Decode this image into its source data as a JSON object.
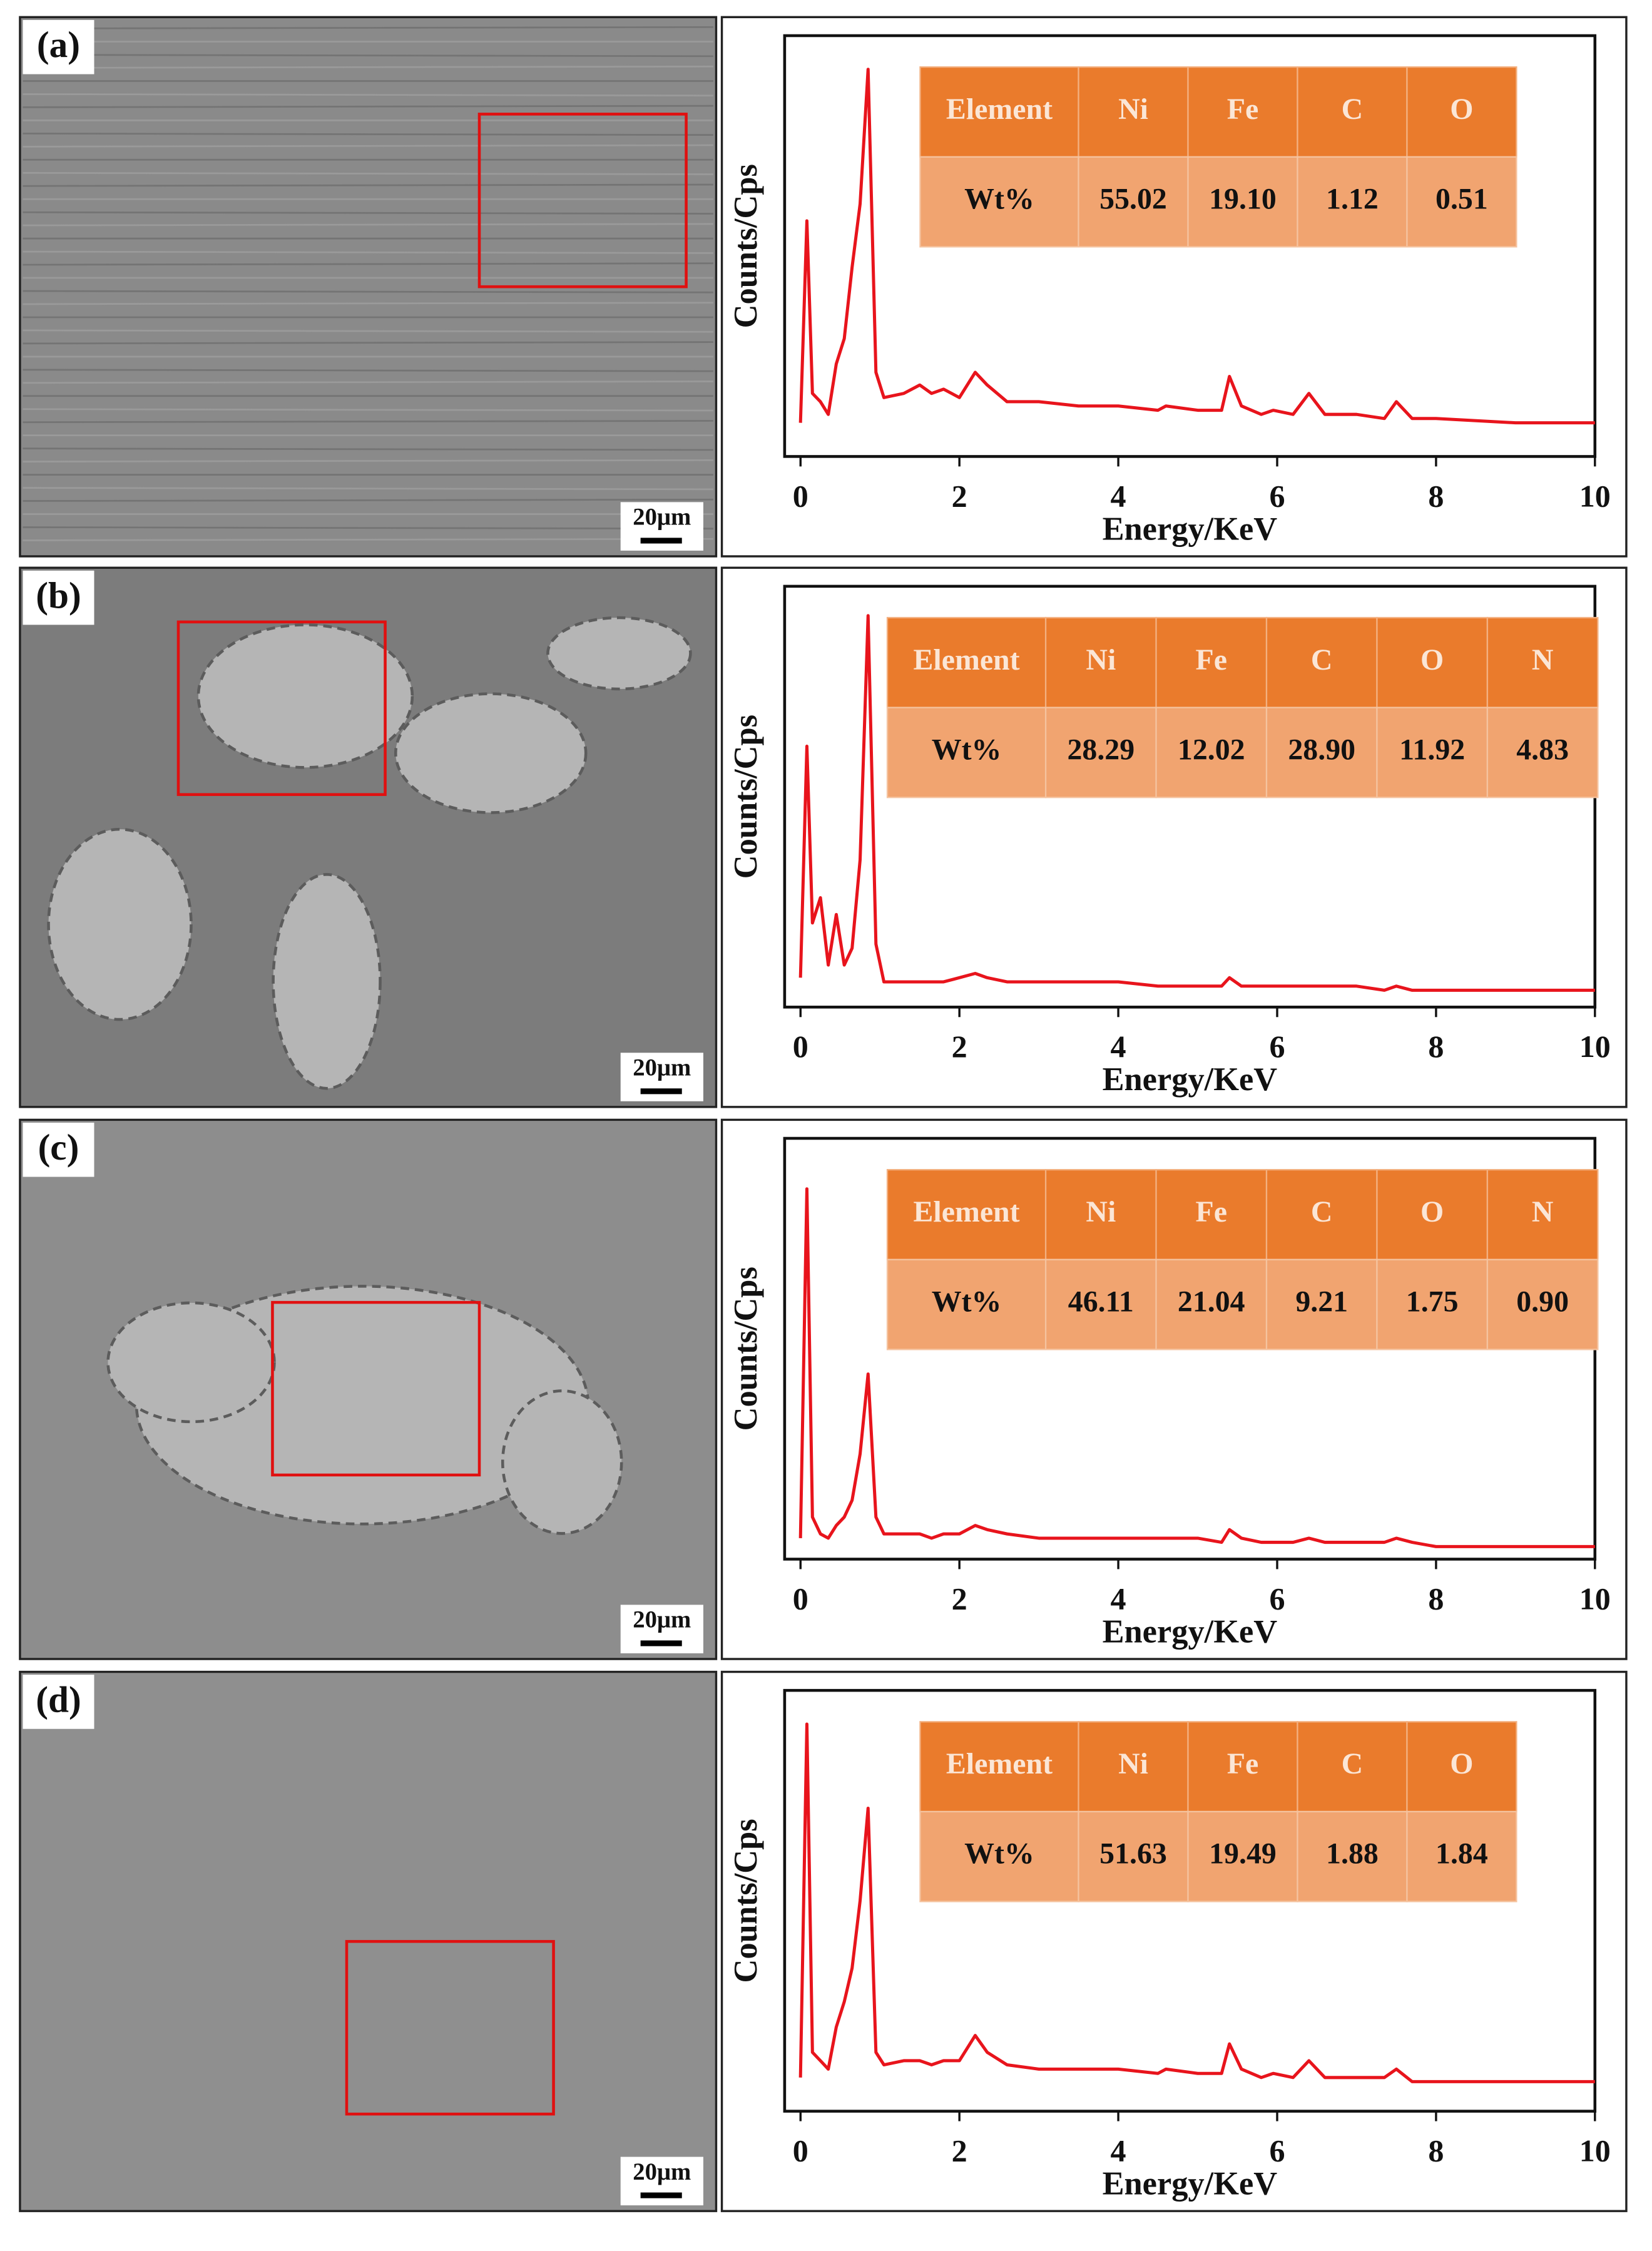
{
  "chart_data": [
    {
      "type": "line",
      "panel_label": "(a)",
      "scale_bar": "20μm",
      "xlabel": "Energy/KeV",
      "ylabel": "Counts/Cps",
      "xlim": [
        -0.2,
        10
      ],
      "xticks": [
        0,
        2,
        4,
        6,
        8,
        10
      ],
      "ylim": [
        0,
        100
      ],
      "x": [
        0,
        0.08,
        0.15,
        0.25,
        0.35,
        0.45,
        0.55,
        0.65,
        0.75,
        0.85,
        0.95,
        1.05,
        1.3,
        1.5,
        1.65,
        1.8,
        2.0,
        2.2,
        2.35,
        2.6,
        3,
        3.5,
        4,
        4.5,
        4.6,
        5,
        5.3,
        5.4,
        5.55,
        5.8,
        5.95,
        6.2,
        6.4,
        6.6,
        7,
        7.35,
        7.5,
        7.7,
        8,
        9,
        10
      ],
      "values": [
        8,
        56,
        15,
        13,
        10,
        22,
        28,
        45,
        60,
        92,
        20,
        14,
        15,
        17,
        15,
        16,
        14,
        20,
        17,
        13,
        13,
        12,
        12,
        11,
        12,
        11,
        11,
        19,
        12,
        10,
        11,
        10,
        15,
        10,
        10,
        9,
        13,
        9,
        9,
        8,
        8
      ],
      "color": "#e8141c",
      "table": {
        "header": [
          "Element",
          "Ni",
          "Fe",
          "C",
          "O"
        ],
        "rows": [
          [
            "Wt%",
            "55.02",
            "19.10",
            "1.12",
            "0.51"
          ]
        ]
      }
    },
    {
      "type": "line",
      "panel_label": "(b)",
      "scale_bar": "20μm",
      "xlabel": "Energy/KeV",
      "ylabel": "Counts/Cps",
      "xlim": [
        -0.2,
        10
      ],
      "xticks": [
        0,
        2,
        4,
        6,
        8,
        10
      ],
      "ylim": [
        0,
        100
      ],
      "x": [
        0,
        0.08,
        0.15,
        0.25,
        0.35,
        0.45,
        0.55,
        0.65,
        0.75,
        0.85,
        0.95,
        1.05,
        1.3,
        1.5,
        1.65,
        1.8,
        2.0,
        2.2,
        2.35,
        2.6,
        3,
        3.5,
        4,
        4.5,
        4.6,
        5,
        5.3,
        5.4,
        5.55,
        5.8,
        5.95,
        6.2,
        6.4,
        6.6,
        7,
        7.35,
        7.5,
        7.7,
        8,
        9,
        10
      ],
      "values": [
        7,
        62,
        20,
        26,
        10,
        22,
        10,
        14,
        35,
        93,
        15,
        6,
        6,
        6,
        6,
        6,
        7,
        8,
        7,
        6,
        6,
        6,
        6,
        5,
        5,
        5,
        5,
        7,
        5,
        5,
        5,
        5,
        5,
        5,
        5,
        4,
        5,
        4,
        4,
        4,
        4
      ],
      "color": "#e8141c",
      "table": {
        "header": [
          "Element",
          "Ni",
          "Fe",
          "C",
          "O",
          "N"
        ],
        "rows": [
          [
            "Wt%",
            "28.29",
            "12.02",
            "28.90",
            "11.92",
            "4.83"
          ]
        ]
      }
    },
    {
      "type": "line",
      "panel_label": "(c)",
      "scale_bar": "20μm",
      "xlabel": "Energy/KeV",
      "ylabel": "Counts/Cps",
      "xlim": [
        -0.2,
        10
      ],
      "xticks": [
        0,
        2,
        4,
        6,
        8,
        10
      ],
      "ylim": [
        0,
        100
      ],
      "x": [
        0,
        0.08,
        0.15,
        0.25,
        0.35,
        0.45,
        0.55,
        0.65,
        0.75,
        0.85,
        0.95,
        1.05,
        1.3,
        1.5,
        1.65,
        1.8,
        2.0,
        2.2,
        2.35,
        2.6,
        3,
        3.5,
        4,
        4.5,
        4.6,
        5,
        5.3,
        5.4,
        5.55,
        5.8,
        5.95,
        6.2,
        6.4,
        6.6,
        7,
        7.35,
        7.5,
        7.7,
        8,
        9,
        10
      ],
      "values": [
        5,
        88,
        10,
        6,
        5,
        8,
        10,
        14,
        25,
        44,
        10,
        6,
        6,
        6,
        5,
        6,
        6,
        8,
        7,
        6,
        5,
        5,
        5,
        5,
        5,
        5,
        4,
        7,
        5,
        4,
        4,
        4,
        5,
        4,
        4,
        4,
        5,
        4,
        3,
        3,
        3
      ],
      "color": "#e8141c",
      "table": {
        "header": [
          "Element",
          "Ni",
          "Fe",
          "C",
          "O",
          "N"
        ],
        "rows": [
          [
            "Wt%",
            "46.11",
            "21.04",
            "9.21",
            "1.75",
            "0.90"
          ]
        ]
      }
    },
    {
      "type": "line",
      "panel_label": "(d)",
      "scale_bar": "20μm",
      "xlabel": "Energy/KeV",
      "ylabel": "Counts/Cps",
      "xlim": [
        -0.2,
        10
      ],
      "xticks": [
        0,
        2,
        4,
        6,
        8,
        10
      ],
      "ylim": [
        0,
        100
      ],
      "x": [
        0,
        0.08,
        0.15,
        0.25,
        0.35,
        0.45,
        0.55,
        0.65,
        0.75,
        0.85,
        0.95,
        1.05,
        1.3,
        1.5,
        1.65,
        1.8,
        2.0,
        2.2,
        2.35,
        2.6,
        3,
        3.5,
        4,
        4.5,
        4.6,
        5,
        5.3,
        5.4,
        5.55,
        5.8,
        5.95,
        6.2,
        6.4,
        6.6,
        7,
        7.35,
        7.5,
        7.7,
        8,
        9,
        10
      ],
      "values": [
        8,
        92,
        14,
        12,
        10,
        20,
        26,
        34,
        50,
        72,
        14,
        11,
        12,
        12,
        11,
        12,
        12,
        18,
        14,
        11,
        10,
        10,
        10,
        9,
        10,
        9,
        9,
        16,
        10,
        8,
        9,
        8,
        12,
        8,
        8,
        8,
        10,
        7,
        7,
        7,
        7
      ],
      "color": "#e8141c",
      "table": {
        "header": [
          "Element",
          "Ni",
          "Fe",
          "C",
          "O"
        ],
        "rows": [
          [
            "Wt%",
            "51.63",
            "19.49",
            "1.88",
            "1.84"
          ]
        ]
      }
    }
  ]
}
